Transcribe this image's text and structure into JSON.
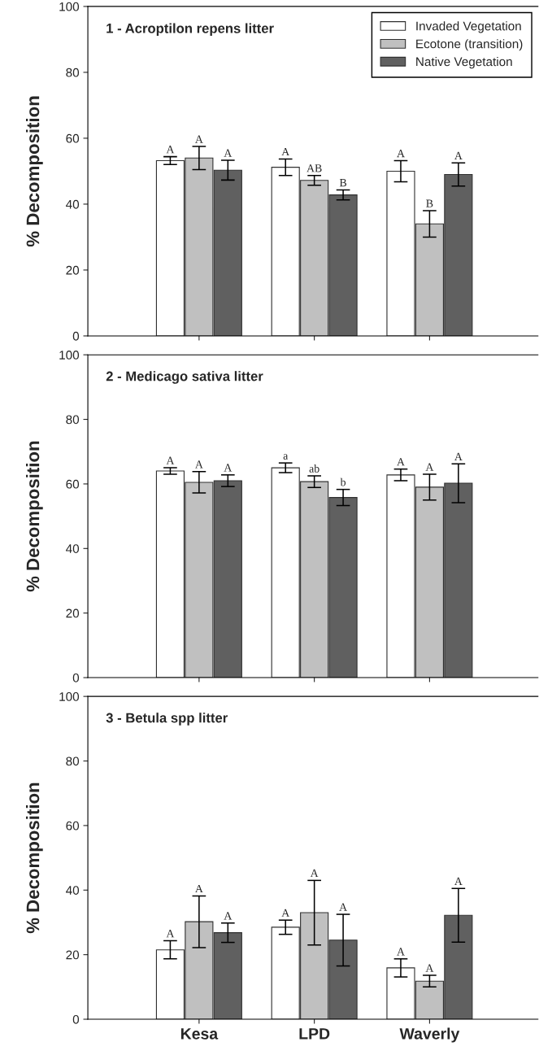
{
  "chart_data": [
    {
      "type": "bar",
      "title": "1 - Acroptilon repens litter",
      "ylabel": "% Decomposition",
      "categories": [
        null,
        null,
        null
      ],
      "ylim": [
        0,
        100
      ],
      "yticks": [
        0,
        20,
        40,
        60,
        80,
        100
      ],
      "legend": "top right",
      "series": [
        {
          "name": "Invaded Vegetation",
          "color": "#ffffff",
          "values": [
            53.2,
            51.2,
            50
          ],
          "errors": [
            1.2,
            2.5,
            3.2
          ],
          "value_labels": [
            "A",
            "A",
            "A"
          ]
        },
        {
          "name": "Ecotone (transition)",
          "color": "#c0c0c0",
          "values": [
            54,
            47.2,
            34
          ],
          "errors": [
            3.5,
            1.5,
            4
          ],
          "value_labels": [
            "A",
            "AB",
            "B"
          ]
        },
        {
          "name": "Native Vegetation",
          "color": "#606060",
          "values": [
            50.3,
            42.8,
            49
          ],
          "errors": [
            3,
            1.5,
            3.5
          ],
          "value_labels": [
            "A",
            "B",
            "A"
          ]
        }
      ]
    },
    {
      "type": "bar",
      "title": "2 - Medicago sativa litter",
      "ylabel": "% Decomposition",
      "categories": [
        null,
        null,
        null
      ],
      "ylim": [
        0,
        100
      ],
      "yticks": [
        0,
        20,
        40,
        60,
        80,
        100
      ],
      "series": [
        {
          "color": "#ffffff",
          "values": [
            64,
            65,
            62.8
          ],
          "errors": [
            1,
            1.5,
            1.8
          ],
          "value_labels": [
            "A",
            "a",
            "A"
          ]
        },
        {
          "color": "#c0c0c0",
          "values": [
            60.5,
            60.7,
            59
          ],
          "errors": [
            3.3,
            1.8,
            4
          ],
          "value_labels": [
            "A",
            "ab",
            "A"
          ]
        },
        {
          "color": "#606060",
          "values": [
            61,
            55.8,
            60.2
          ],
          "errors": [
            1.8,
            2.5,
            6
          ],
          "value_labels": [
            "A",
            "b",
            "A"
          ]
        }
      ]
    },
    {
      "type": "bar",
      "title": "3 - Betula spp litter",
      "ylabel": "% Decomposition",
      "categories": [
        "Kesa",
        "LPD",
        "Waverly"
      ],
      "ylim": [
        0,
        100
      ],
      "yticks": [
        0,
        20,
        40,
        60,
        80,
        100
      ],
      "series": [
        {
          "color": "#ffffff",
          "values": [
            21.5,
            28.5,
            15.9
          ],
          "errors": [
            2.8,
            2.2,
            2.8
          ],
          "value_labels": [
            "A",
            "A",
            "A"
          ]
        },
        {
          "color": "#c0c0c0",
          "values": [
            30.2,
            33,
            11.8
          ],
          "errors": [
            8,
            10,
            1.8
          ],
          "value_labels": [
            "A",
            "A",
            "A"
          ]
        },
        {
          "color": "#606060",
          "values": [
            26.8,
            24.5,
            32.2
          ],
          "errors": [
            3,
            8,
            8.3
          ],
          "value_labels": [
            "A",
            "A",
            "A"
          ]
        }
      ]
    }
  ]
}
